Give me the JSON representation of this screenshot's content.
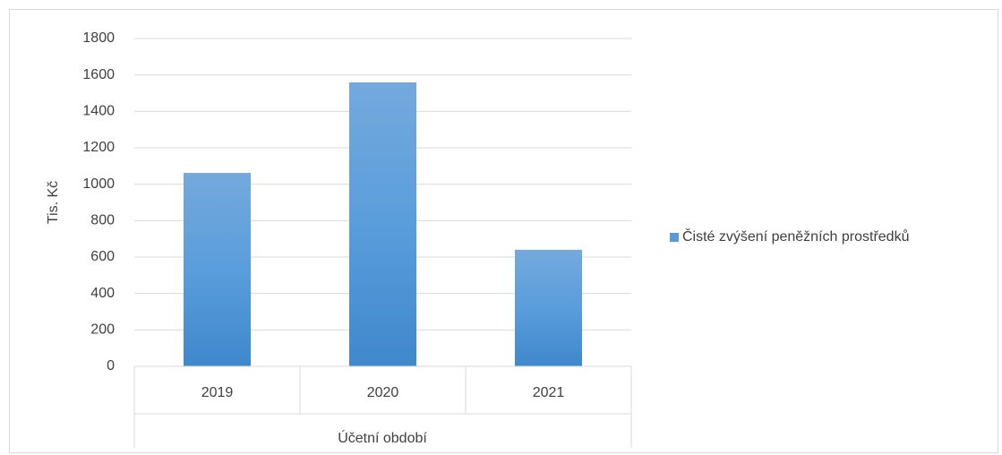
{
  "chart_data": {
    "type": "bar",
    "categories": [
      "2019",
      "2020",
      "2021"
    ],
    "xlabel": "Účetní období",
    "ylabel": "Tis. Kč",
    "series": [
      {
        "name": "Čisté zvýšení peněžních prostředků",
        "color": "#5b9bd5",
        "values": [
          1062,
          1559,
          640
        ]
      }
    ],
    "ylim": [
      0,
      1800
    ],
    "yticks": [
      0,
      200,
      400,
      600,
      800,
      1000,
      1200,
      1400,
      1600,
      1800
    ],
    "grid": true,
    "legend": "right"
  }
}
